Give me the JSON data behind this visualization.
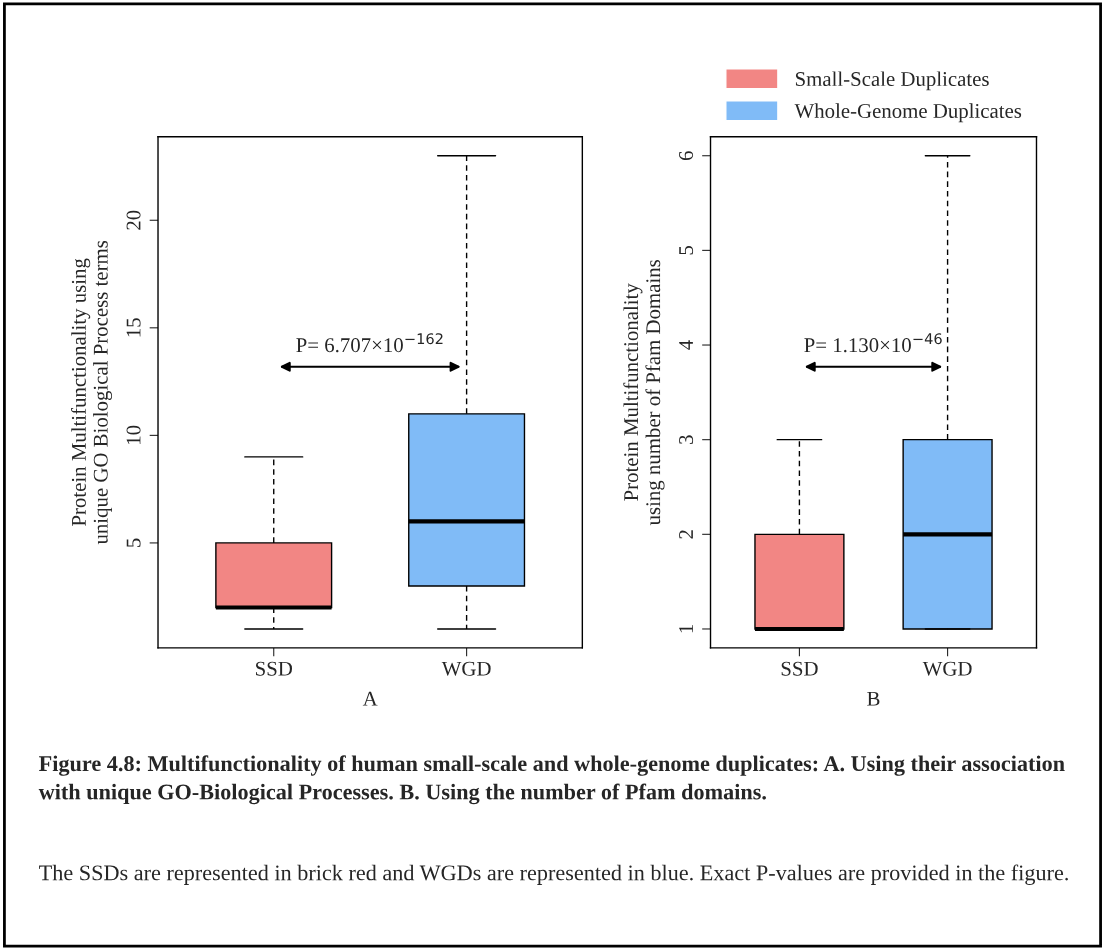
{
  "chart_data": [
    {
      "type": "box",
      "categories": [
        "SSD",
        "WGD"
      ],
      "xlabel": "A",
      "ylabel": "Protein Multifunctionality using\nunique GO Biological Process terms",
      "series": [
        {
          "color": "#f28684",
          "boxes": [
            {
              "low": 1,
              "q1": 2,
              "median": 2,
              "q3": 5,
              "high": 9
            },
            null
          ]
        },
        {
          "color": "#80bbf7",
          "boxes": [
            null,
            {
              "low": 1,
              "q1": 3,
              "median": 6,
              "q3": 11,
              "high": 23
            }
          ]
        }
      ],
      "ylim": [
        0.12,
        23.88
      ],
      "yticks": [
        5,
        10,
        15,
        20
      ],
      "grid": false,
      "annotations": [
        "P= 6.707×10$^{−162}$"
      ]
    },
    {
      "type": "box",
      "categories": [
        "SSD",
        "WGD"
      ],
      "xlabel": "B",
      "ylabel": "Protein Multifunctionality\nusing number of Pfam Domains",
      "series": [
        {
          "name": "Small-Scale Duplicates",
          "color": "#f28684",
          "boxes": [
            {
              "low": 1,
              "q1": 1,
              "median": 1,
              "q3": 2,
              "high": 3
            },
            null
          ]
        },
        {
          "name": "Whole-Genome Duplicates",
          "color": "#80bbf7",
          "boxes": [
            null,
            {
              "low": 1,
              "q1": 1,
              "median": 2,
              "q3": 3,
              "high": 6
            }
          ]
        }
      ],
      "ylim": [
        0.8,
        6.2
      ],
      "yticks": [
        1,
        2,
        3,
        4,
        5,
        6
      ],
      "grid": false,
      "legend": "top right",
      "annotations": [
        "P= 1.130×10$^{−46}$",
        "Figure 4.8: Multifunctionality of human small-scale and whole-genome duplicates: A. Using their association with unique GO-Biological Processes. B. Using the number of Pfam domains.",
        "The SSDs are represented in brick red and WGDs are represented in blue. Exact P-values are provided in the figure."
      ]
    }
  ]
}
